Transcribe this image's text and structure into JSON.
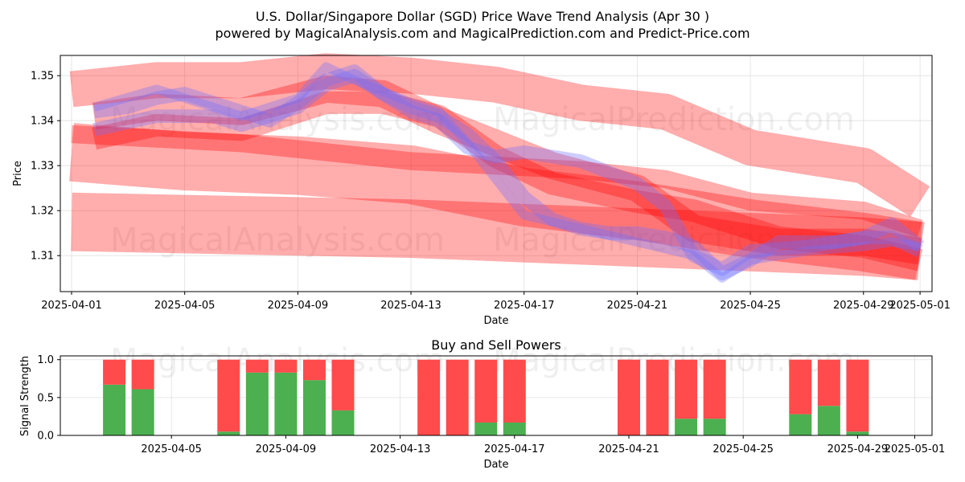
{
  "title_line1": "U.S. Dollar/Singapore Dollar (SGD) Price Wave Trend Analysis (Apr 30 )",
  "title_line2": "powered by MagicalAnalysis.com and MagicalPrediction.com and Predict-Price.com",
  "watermarks": [
    "MagicalAnalysis.com",
    "MagicalPrediction.com",
    "MagicalAnalysis.com",
    "MagicalPrediction.com",
    "MagicalAnalysis.com",
    "MagicalPrediction.com"
  ],
  "colors": {
    "red_band": "#ff0000",
    "blue_band": "#6f6fff",
    "buy": "#4caf50",
    "sell": "#ff4b4b",
    "grid": "#e0e0e0"
  },
  "chart_data": [
    {
      "type": "line",
      "title": "",
      "xlabel": "Date",
      "ylabel": "Price",
      "x_range": [
        "2025-04-01",
        "2025-05-01"
      ],
      "ylim": [
        1.302,
        1.3545
      ],
      "x_ticks": [
        "2025-04-01",
        "2025-04-05",
        "2025-04-09",
        "2025-04-13",
        "2025-04-17",
        "2025-04-21",
        "2025-04-25",
        "2025-04-29",
        "2025-05-01"
      ],
      "x_tick_days": [
        0,
        4,
        8,
        12,
        16,
        20,
        24,
        28,
        30
      ],
      "y_ticks": [
        1.31,
        1.32,
        1.33,
        1.34,
        1.35
      ],
      "y_tick_labels": [
        "1.31",
        "1.32",
        "1.33",
        "1.34",
        "1.35"
      ],
      "grid": true,
      "series": [
        {
          "name": "red-wave-1",
          "color": "red",
          "width": 0.008,
          "x": [
            0,
            3,
            6,
            9,
            12,
            15,
            18,
            21,
            24,
            28,
            30
          ],
          "y": [
            1.347,
            1.349,
            1.349,
            1.351,
            1.35,
            1.348,
            1.344,
            1.342,
            1.334,
            1.33,
            1.322
          ]
        },
        {
          "name": "red-wave-2",
          "color": "red",
          "width": 0.004,
          "x": [
            0,
            3,
            6,
            9,
            12,
            15,
            18,
            21,
            24,
            28,
            30
          ],
          "y": [
            1.337,
            1.336,
            1.335,
            1.333,
            1.331,
            1.33,
            1.329,
            1.327,
            1.322,
            1.32,
            1.316
          ]
        },
        {
          "name": "red-wave-3",
          "color": "red",
          "width": 0.013,
          "x": [
            0,
            4,
            8,
            12,
            16,
            20,
            24,
            28,
            30
          ],
          "y": [
            1.333,
            1.331,
            1.33,
            1.328,
            1.323,
            1.32,
            1.316,
            1.313,
            1.311
          ]
        },
        {
          "name": "red-wave-4",
          "color": "red",
          "width": 0.013,
          "x": [
            0,
            4,
            8,
            12,
            16,
            20,
            24,
            28,
            30
          ],
          "y": [
            1.3175,
            1.317,
            1.3165,
            1.316,
            1.315,
            1.314,
            1.313,
            1.312,
            1.311
          ]
        },
        {
          "name": "red-wave-5",
          "color": "red",
          "width": 0.006,
          "x": [
            0.8,
            3,
            6,
            9,
            11,
            13,
            15,
            17,
            20,
            22,
            25,
            28,
            30
          ],
          "y": [
            1.341,
            1.343,
            1.342,
            1.347,
            1.346,
            1.34,
            1.335,
            1.33,
            1.325,
            1.316,
            1.313,
            1.313,
            1.311
          ]
        },
        {
          "name": "red-wave-6",
          "color": "red",
          "width": 0.005,
          "x": [
            0.8,
            3,
            6,
            9,
            11,
            13,
            15,
            17,
            20,
            22,
            25,
            28,
            30
          ],
          "y": [
            1.336,
            1.339,
            1.338,
            1.344,
            1.344,
            1.341,
            1.332,
            1.326,
            1.322,
            1.32,
            1.314,
            1.312,
            1.309
          ]
        },
        {
          "name": "blue-wave-1",
          "color": "blue",
          "width": 0.003,
          "x": [
            0.8,
            2,
            3,
            4,
            5,
            6,
            7,
            8,
            9,
            10,
            11,
            12,
            13,
            14,
            15,
            16,
            17,
            18,
            19,
            20,
            21,
            22,
            23,
            24,
            25,
            26,
            27,
            28,
            29,
            30
          ],
          "y": [
            1.342,
            1.343,
            1.345,
            1.346,
            1.344,
            1.342,
            1.34,
            1.344,
            1.349,
            1.351,
            1.346,
            1.343,
            1.341,
            1.337,
            1.331,
            1.323,
            1.318,
            1.316,
            1.315,
            1.315,
            1.314,
            1.312,
            1.306,
            1.309,
            1.313,
            1.313,
            1.313,
            1.314,
            1.314,
            1.311
          ]
        },
        {
          "name": "blue-wave-2",
          "color": "blue",
          "width": 0.003,
          "x": [
            0.8,
            3,
            5,
            6,
            8,
            9,
            10,
            12,
            13,
            14,
            15,
            16,
            18,
            20,
            21,
            22,
            23,
            24,
            26,
            28,
            29,
            30
          ],
          "y": [
            1.338,
            1.341,
            1.341,
            1.339,
            1.343,
            1.348,
            1.35,
            1.342,
            1.34,
            1.334,
            1.332,
            1.333,
            1.331,
            1.326,
            1.321,
            1.31,
            1.307,
            1.311,
            1.312,
            1.314,
            1.317,
            1.312
          ]
        },
        {
          "name": "blue-wave-3",
          "color": "blue",
          "width": 0.002,
          "x": [
            0.8,
            3,
            6,
            8,
            9,
            10,
            12,
            13,
            14,
            15,
            16,
            18,
            20,
            22,
            23,
            24,
            26,
            28,
            29,
            30
          ],
          "y": [
            1.343,
            1.347,
            1.341,
            1.345,
            1.352,
            1.349,
            1.344,
            1.342,
            1.335,
            1.327,
            1.319,
            1.316,
            1.313,
            1.31,
            1.305,
            1.309,
            1.311,
            1.312,
            1.313,
            1.312
          ]
        }
      ]
    },
    {
      "type": "bar",
      "title": "Buy and Sell Powers",
      "xlabel": "Date",
      "ylabel": "Signal Strength",
      "ylim": [
        0,
        1.05
      ],
      "y_ticks": [
        0.0,
        0.5,
        1.0
      ],
      "y_tick_labels": [
        "0.0",
        "0.5",
        "1.0"
      ],
      "x_ticks": [
        "2025-04-05",
        "2025-04-09",
        "2025-04-13",
        "2025-04-17",
        "2025-04-21",
        "2025-04-25",
        "2025-04-29",
        "2025-05-01"
      ],
      "x_tick_days": [
        4,
        8,
        12,
        16,
        20,
        24,
        28,
        30
      ],
      "grid": true,
      "days": [
        2,
        3,
        6,
        7,
        8,
        9,
        10,
        13,
        14,
        15,
        16,
        20,
        21,
        22,
        23,
        26,
        27,
        28
      ],
      "series": [
        {
          "name": "Buy",
          "color": "green",
          "values": [
            0.67,
            0.61,
            0.05,
            0.83,
            0.83,
            0.73,
            0.33,
            0.0,
            0.0,
            0.17,
            0.17,
            0.0,
            0.0,
            0.22,
            0.22,
            0.28,
            0.39,
            0.05
          ]
        },
        {
          "name": "Sell",
          "color": "red",
          "values": [
            0.33,
            0.39,
            0.95,
            0.17,
            0.17,
            0.27,
            0.67,
            1.0,
            1.0,
            0.83,
            0.83,
            1.0,
            1.0,
            0.78,
            0.78,
            0.72,
            0.61,
            0.95
          ]
        }
      ]
    }
  ]
}
